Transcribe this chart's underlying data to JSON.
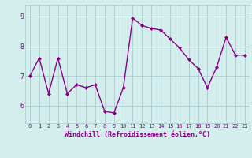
{
  "x": [
    0,
    1,
    2,
    3,
    4,
    5,
    6,
    7,
    8,
    9,
    10,
    11,
    12,
    13,
    14,
    15,
    16,
    17,
    18,
    19,
    20,
    21,
    22,
    23
  ],
  "y": [
    7.0,
    7.6,
    6.4,
    7.6,
    6.4,
    6.7,
    6.6,
    6.7,
    5.8,
    5.75,
    6.6,
    8.95,
    8.7,
    8.6,
    8.55,
    8.25,
    7.95,
    7.55,
    7.25,
    6.6,
    7.3,
    8.3,
    7.7,
    7.7
  ],
  "line_color": "#880088",
  "marker": "D",
  "marker_size": 2,
  "line_width": 1.0,
  "xlabel": "Windchill (Refroidissement éolien,°C)",
  "xlabel_fontsize": 6.0,
  "ytick_vals": [
    6,
    7,
    8,
    9
  ],
  "xlim": [
    -0.5,
    23.5
  ],
  "ylim": [
    5.4,
    9.4
  ],
  "bg_color": "#d4eeee",
  "grid_color": "#aacccc",
  "tick_color": "#880088",
  "xtick_fontsize": 5.0,
  "ytick_fontsize": 6.0,
  "xtick_labels": [
    "0",
    "1",
    "2",
    "3",
    "4",
    "5",
    "6",
    "7",
    "8",
    "9",
    "10",
    "11",
    "12",
    "13",
    "14",
    "15",
    "16",
    "17",
    "18",
    "19",
    "20",
    "21",
    "22",
    "23"
  ]
}
